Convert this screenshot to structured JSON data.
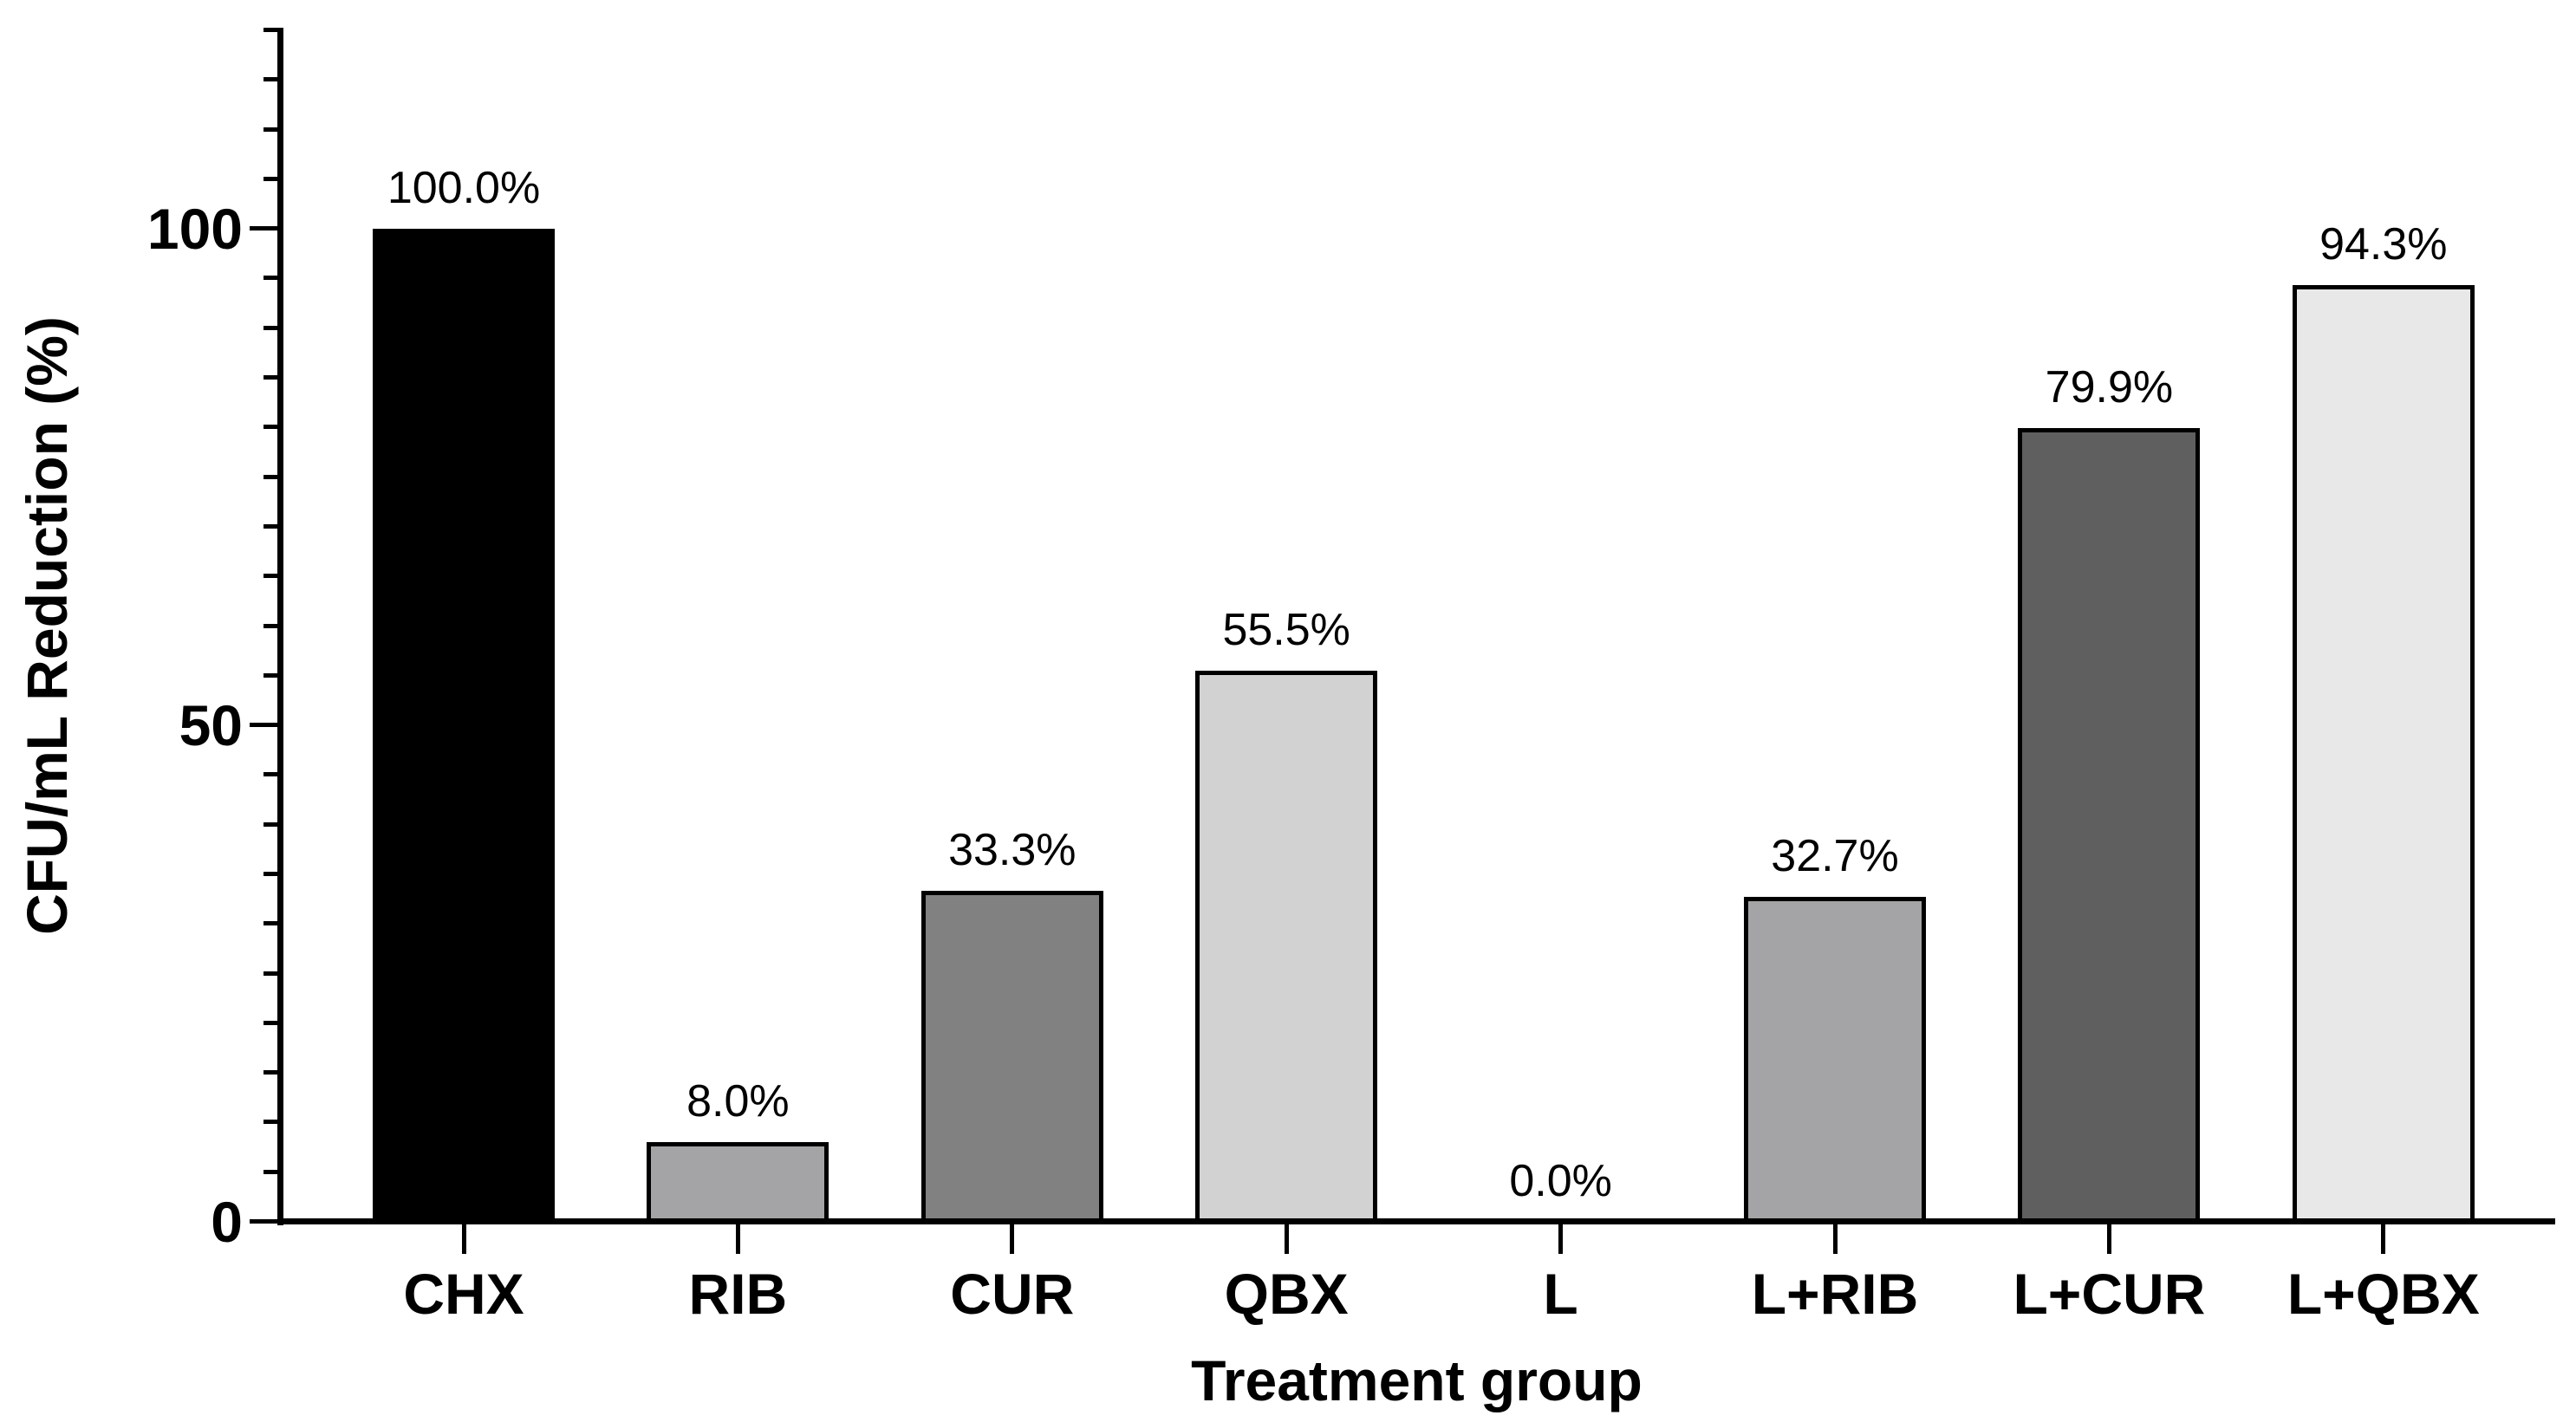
{
  "chart_data": {
    "type": "bar",
    "title": "",
    "xlabel": "Treatment group",
    "ylabel": "CFU/mL Reduction (%)",
    "categories": [
      "CHX",
      "RIB",
      "CUR",
      "QBX",
      "L",
      "L+RIB",
      "L+CUR",
      "L+QBX"
    ],
    "values": [
      100.0,
      8.0,
      33.3,
      55.5,
      0.0,
      32.7,
      79.9,
      94.3
    ],
    "bar_value_labels": [
      "100.0%",
      "8.0%",
      "33.3%",
      "55.5%",
      "0.0%",
      "32.7%",
      "79.9%",
      "94.3%"
    ],
    "bar_fill_colors": [
      "#000000",
      "#a4a4a6",
      "#818181",
      "#d2d2d2",
      null,
      "#a4a4a6",
      "#5f5f5f",
      "#e8e8e8"
    ],
    "bar_outline_color": "#000000",
    "ylim": [
      0,
      120
    ],
    "ytick_major_values": [
      0,
      50,
      100
    ],
    "ytick_major_labels": [
      "0",
      "50",
      "100"
    ],
    "ytick_minor_step": 5,
    "grid": false,
    "legend_position": "none",
    "background_color": "#ffffff",
    "text_color": "#000000"
  }
}
